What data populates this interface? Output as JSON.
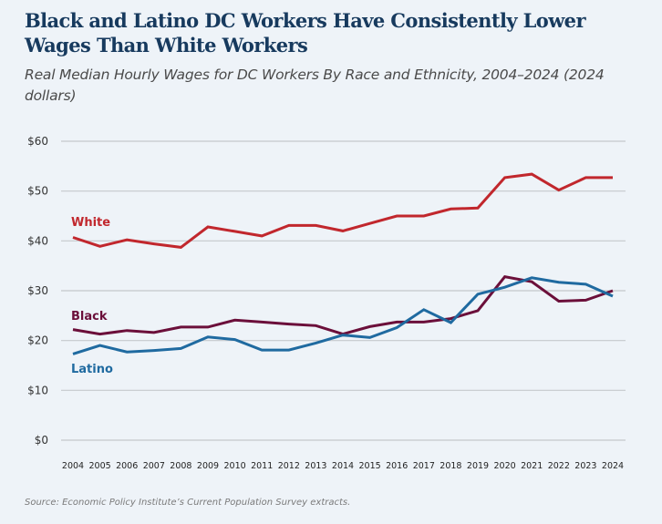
{
  "title": "Black and Latino DC Workers Have Consistently Lower Wages Than White Workers",
  "subtitle": "Real Median Hourly Wages for DC Workers By Race and Ethnicity, 2004–2024 (2024 dollars)",
  "source": "Source: Economic Policy Institute’s Current Population Survey extracts.",
  "chart_data": {
    "type": "line",
    "title": "Real Median Hourly Wages for DC Workers By Race and Ethnicity, 2004–2024 (2024 dollars)",
    "xlabel": "",
    "ylabel": "",
    "x": [
      2004,
      2005,
      2006,
      2007,
      2008,
      2009,
      2010,
      2011,
      2012,
      2013,
      2014,
      2015,
      2016,
      2017,
      2018,
      2019,
      2020,
      2021,
      2022,
      2023,
      2024
    ],
    "x_tick_labels": [
      "2004",
      "2005",
      "2006",
      "2007",
      "2008",
      "2009",
      "2010",
      "2011",
      "2012",
      "2013",
      "2014",
      "2015",
      "2016",
      "2017",
      "2018",
      "2019",
      "2020",
      "2021",
      "2022",
      "2023",
      "2024"
    ],
    "ylim": [
      0,
      60
    ],
    "y_ticks": [
      0,
      10,
      20,
      30,
      40,
      50,
      60
    ],
    "y_tick_labels": [
      "$0",
      "$10",
      "$20",
      "$30",
      "$40",
      "$50",
      "$60"
    ],
    "grid": "horizontal",
    "legend": "inline labels at left",
    "series": [
      {
        "name": "White",
        "color": "#c1272d",
        "values": [
          40.7,
          38.9,
          40.2,
          39.4,
          38.7,
          42.8,
          41.9,
          41.0,
          43.1,
          43.1,
          42.0,
          43.5,
          45.0,
          45.0,
          46.4,
          46.6,
          52.7,
          53.4,
          50.2,
          52.7,
          52.7
        ]
      },
      {
        "name": "Black",
        "color": "#6b0f3a",
        "values": [
          22.2,
          21.3,
          22.0,
          21.6,
          22.7,
          22.7,
          24.1,
          23.7,
          23.3,
          23.0,
          21.3,
          22.8,
          23.7,
          23.7,
          24.4,
          26.0,
          32.8,
          31.8,
          27.9,
          28.1,
          30.0
        ]
      },
      {
        "name": "Latino",
        "color": "#1f6aa0",
        "values": [
          17.3,
          19.0,
          17.7,
          18.0,
          18.4,
          20.7,
          20.2,
          18.1,
          18.1,
          19.5,
          21.1,
          20.6,
          22.6,
          26.2,
          23.6,
          29.3,
          30.7,
          32.6,
          31.7,
          31.3,
          28.9
        ]
      }
    ]
  }
}
